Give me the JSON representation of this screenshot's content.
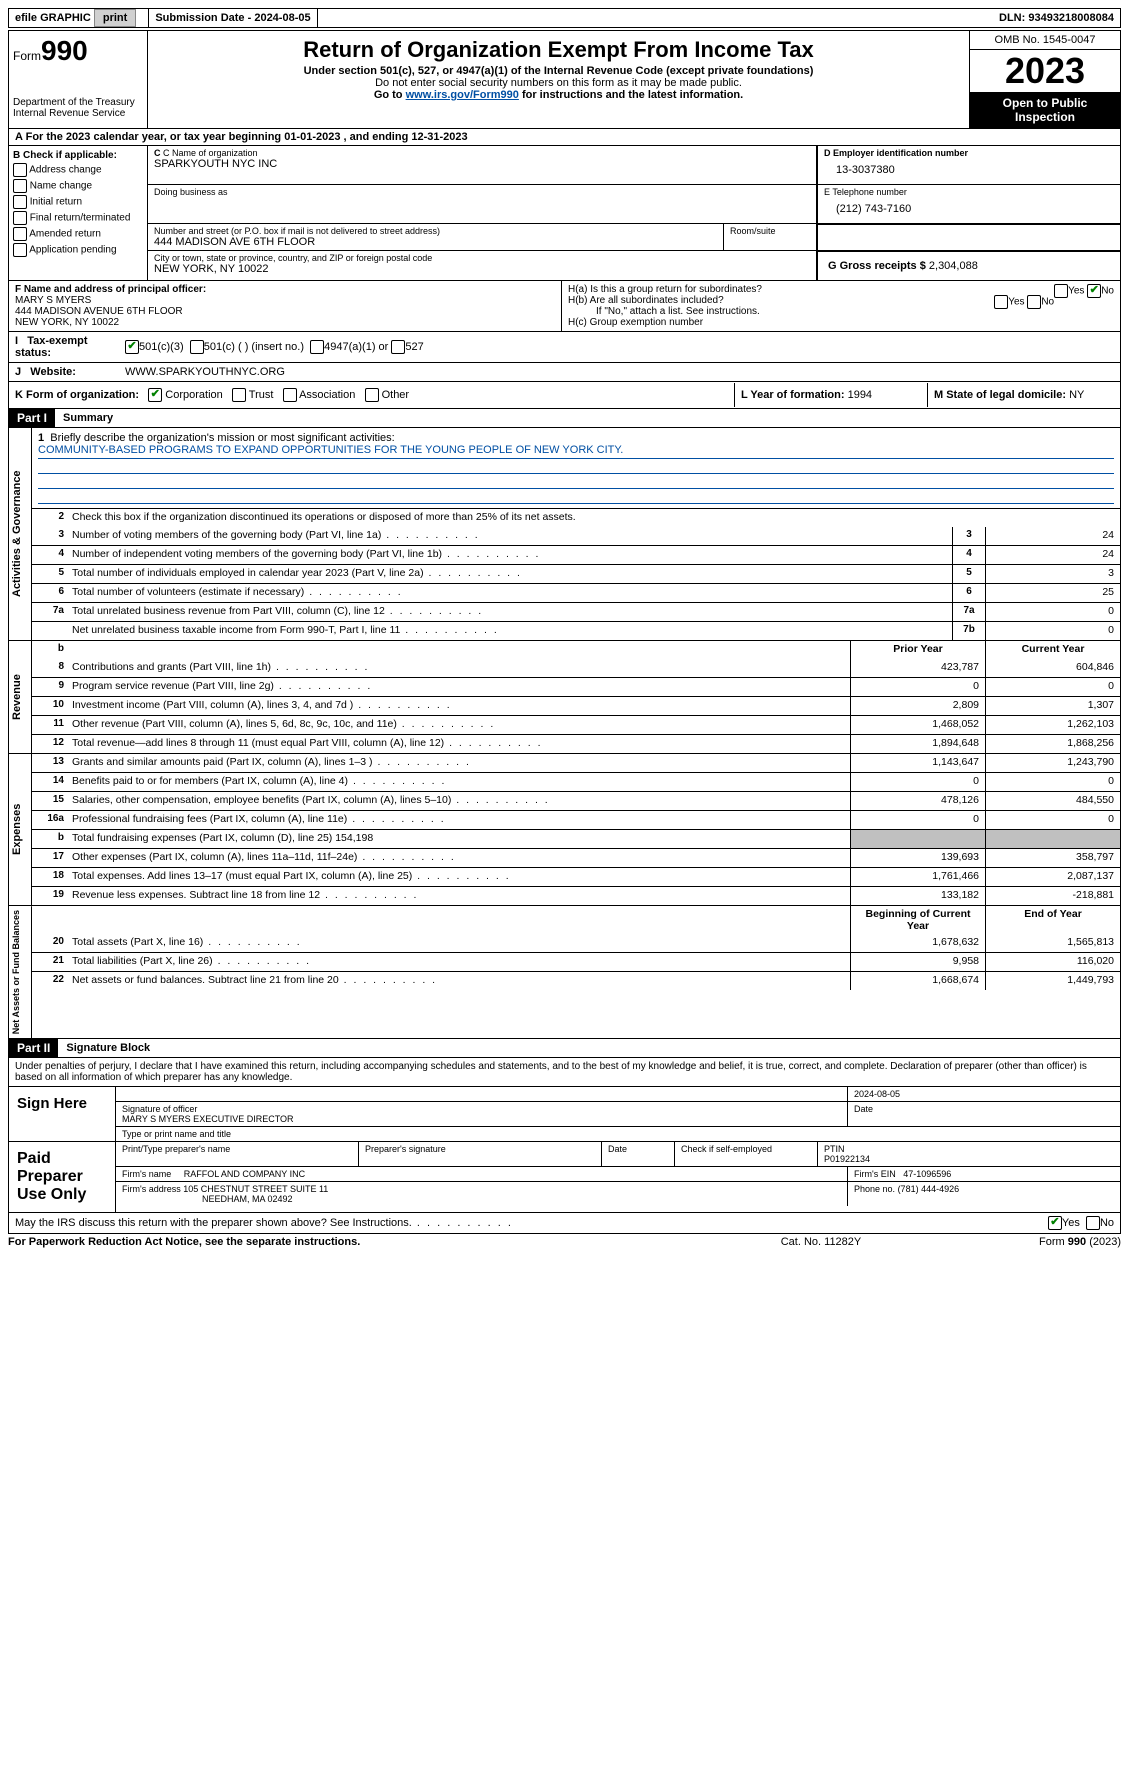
{
  "topbar": {
    "efile": "efile GRAPHIC",
    "print": "print",
    "submission": "Submission Date - 2024-08-05",
    "dln": "DLN: 93493218008084"
  },
  "header": {
    "form_label": "Form",
    "form_num": "990",
    "dept": "Department of the Treasury\nInternal Revenue Service",
    "title": "Return of Organization Exempt From Income Tax",
    "subtitle": "Under section 501(c), 527, or 4947(a)(1) of the Internal Revenue Code (except private foundations)",
    "ssn": "Do not enter social security numbers on this form as it may be made public.",
    "goto_pre": "Go to ",
    "goto_link": "www.irs.gov/Form990",
    "goto_post": " for instructions and the latest information.",
    "omb": "OMB No. 1545-0047",
    "year": "2023",
    "open": "Open to Public Inspection"
  },
  "line_a": "For the 2023 calendar year, or tax year beginning 01-01-2023    , and ending 12-31-2023",
  "box_b": {
    "label": "B Check if applicable:",
    "opts": [
      "Address change",
      "Name change",
      "Initial return",
      "Final return/terminated",
      "Amended return",
      "Application pending"
    ]
  },
  "box_c": {
    "name_label": "C Name of organization",
    "name": "SPARKYOUTH NYC INC",
    "dba_label": "Doing business as",
    "dba": "",
    "street_label": "Number and street (or P.O. box if mail is not delivered to street address)",
    "room_label": "Room/suite",
    "street": "444 MADISON AVE 6TH FLOOR",
    "city_label": "City or town, state or province, country, and ZIP or foreign postal code",
    "city": "NEW YORK, NY  10022"
  },
  "box_d": {
    "label": "D Employer identification number",
    "val": "13-3037380"
  },
  "box_e": {
    "label": "E Telephone number",
    "val": "(212) 743-7160"
  },
  "box_g": {
    "label": "G Gross receipts $",
    "val": "2,304,088"
  },
  "box_f": {
    "label": "F  Name and address of principal officer:",
    "name": "MARY S MYERS",
    "addr1": "444 MADISON AVENUE 6TH FLOOR",
    "addr2": "NEW YORK, NY  10022"
  },
  "box_h": {
    "a": "H(a)  Is this a group return for subordinates?",
    "b": "H(b)  Are all subordinates included?",
    "b_note": "If \"No,\" attach a list. See instructions.",
    "c": "H(c)  Group exemption number"
  },
  "box_i": {
    "label": "Tax-exempt status:",
    "o1": "501(c)(3)",
    "o2": "501(c) (  ) (insert no.)",
    "o3": "4947(a)(1) or",
    "o4": "527"
  },
  "box_j": {
    "label": "Website:",
    "val": "WWW.SPARKYOUTHNYC.ORG"
  },
  "box_k": {
    "label": "K Form of organization:",
    "o1": "Corporation",
    "o2": "Trust",
    "o3": "Association",
    "o4": "Other"
  },
  "box_l": {
    "label": "L Year of formation:",
    "val": "1994"
  },
  "box_m": {
    "label": "M State of legal domicile:",
    "val": "NY"
  },
  "part1": {
    "header": "Part I",
    "title": "Summary",
    "q1_label": "Briefly describe the organization's mission or most significant activities:",
    "q1_val": "COMMUNITY-BASED PROGRAMS TO EXPAND OPPORTUNITIES FOR THE YOUNG PEOPLE OF NEW YORK CITY.",
    "q2": "Check this box      if the organization discontinued its operations or disposed of more than 25% of its net assets.",
    "sections": {
      "gov": "Activities & Governance",
      "rev": "Revenue",
      "exp": "Expenses",
      "net": "Net Assets or Fund Balances"
    },
    "rows_gov": [
      {
        "n": "3",
        "d": "Number of voting members of the governing body (Part VI, line 1a)",
        "box": "3",
        "v": "24"
      },
      {
        "n": "4",
        "d": "Number of independent voting members of the governing body (Part VI, line 1b)",
        "box": "4",
        "v": "24"
      },
      {
        "n": "5",
        "d": "Total number of individuals employed in calendar year 2023 (Part V, line 2a)",
        "box": "5",
        "v": "3"
      },
      {
        "n": "6",
        "d": "Total number of volunteers (estimate if necessary)",
        "box": "6",
        "v": "25"
      },
      {
        "n": "7a",
        "d": "Total unrelated business revenue from Part VIII, column (C), line 12",
        "box": "7a",
        "v": "0"
      },
      {
        "n": "",
        "d": "Net unrelated business taxable income from Form 990-T, Part I, line 11",
        "box": "7b",
        "v": "0"
      }
    ],
    "col_headers": {
      "b": "b",
      "prior": "Prior Year",
      "current": "Current Year"
    },
    "rows_rev": [
      {
        "n": "8",
        "d": "Contributions and grants (Part VIII, line 1h)",
        "p": "423,787",
        "c": "604,846"
      },
      {
        "n": "9",
        "d": "Program service revenue (Part VIII, line 2g)",
        "p": "0",
        "c": "0"
      },
      {
        "n": "10",
        "d": "Investment income (Part VIII, column (A), lines 3, 4, and 7d )",
        "p": "2,809",
        "c": "1,307"
      },
      {
        "n": "11",
        "d": "Other revenue (Part VIII, column (A), lines 5, 6d, 8c, 9c, 10c, and 11e)",
        "p": "1,468,052",
        "c": "1,262,103"
      },
      {
        "n": "12",
        "d": "Total revenue—add lines 8 through 11 (must equal Part VIII, column (A), line 12)",
        "p": "1,894,648",
        "c": "1,868,256"
      }
    ],
    "rows_exp": [
      {
        "n": "13",
        "d": "Grants and similar amounts paid (Part IX, column (A), lines 1–3 )",
        "p": "1,143,647",
        "c": "1,243,790"
      },
      {
        "n": "14",
        "d": "Benefits paid to or for members (Part IX, column (A), line 4)",
        "p": "0",
        "c": "0"
      },
      {
        "n": "15",
        "d": "Salaries, other compensation, employee benefits (Part IX, column (A), lines 5–10)",
        "p": "478,126",
        "c": "484,550"
      },
      {
        "n": "16a",
        "d": "Professional fundraising fees (Part IX, column (A), line 11e)",
        "p": "0",
        "c": "0"
      },
      {
        "n": "b",
        "d": "Total fundraising expenses (Part IX, column (D), line 25) 154,198",
        "p": "",
        "c": "",
        "shade": true
      },
      {
        "n": "17",
        "d": "Other expenses (Part IX, column (A), lines 11a–11d, 11f–24e)",
        "p": "139,693",
        "c": "358,797"
      },
      {
        "n": "18",
        "d": "Total expenses. Add lines 13–17 (must equal Part IX, column (A), line 25)",
        "p": "1,761,466",
        "c": "2,087,137"
      },
      {
        "n": "19",
        "d": "Revenue less expenses. Subtract line 18 from line 12",
        "p": "133,182",
        "c": "-218,881"
      }
    ],
    "net_headers": {
      "begin": "Beginning of Current Year",
      "end": "End of Year"
    },
    "rows_net": [
      {
        "n": "20",
        "d": "Total assets (Part X, line 16)",
        "p": "1,678,632",
        "c": "1,565,813"
      },
      {
        "n": "21",
        "d": "Total liabilities (Part X, line 26)",
        "p": "9,958",
        "c": "116,020"
      },
      {
        "n": "22",
        "d": "Net assets or fund balances. Subtract line 21 from line 20",
        "p": "1,668,674",
        "c": "1,449,793"
      }
    ]
  },
  "part2": {
    "header": "Part II",
    "title": "Signature Block",
    "penalties": "Under penalties of perjury, I declare that I have examined this return, including accompanying schedules and statements, and to the best of my knowledge and belief, it is true, correct, and complete. Declaration of preparer (other than officer) is based on all information of which preparer has any knowledge."
  },
  "sign": {
    "label": "Sign Here",
    "date": "2024-08-05",
    "sig_label": "Signature of officer",
    "officer": "MARY S MYERS  EXECUTIVE DIRECTOR",
    "name_label": "Type or print name and title",
    "date_label": "Date"
  },
  "preparer": {
    "label": "Paid Preparer Use Only",
    "name_label": "Print/Type preparer's name",
    "sig_label": "Preparer's signature",
    "date_label": "Date",
    "check_label": "Check      if self-employed",
    "ptin_label": "PTIN",
    "ptin": "P01922134",
    "firm_name_label": "Firm's name",
    "firm_name": "RAFFOL AND COMPANY INC",
    "firm_ein_label": "Firm's EIN",
    "firm_ein": "47-1096596",
    "firm_addr_label": "Firm's address",
    "firm_addr1": "105 CHESTNUT STREET SUITE 11",
    "firm_addr2": "NEEDHAM, MA  02492",
    "phone_label": "Phone no.",
    "phone": "(781) 444-4926"
  },
  "discuss": "May the IRS discuss this return with the preparer shown above? See Instructions.",
  "footer": {
    "left": "For Paperwork Reduction Act Notice, see the separate instructions.",
    "mid": "Cat. No. 11282Y",
    "right_pre": "Form ",
    "right_b": "990",
    "right_post": " (2023)"
  }
}
